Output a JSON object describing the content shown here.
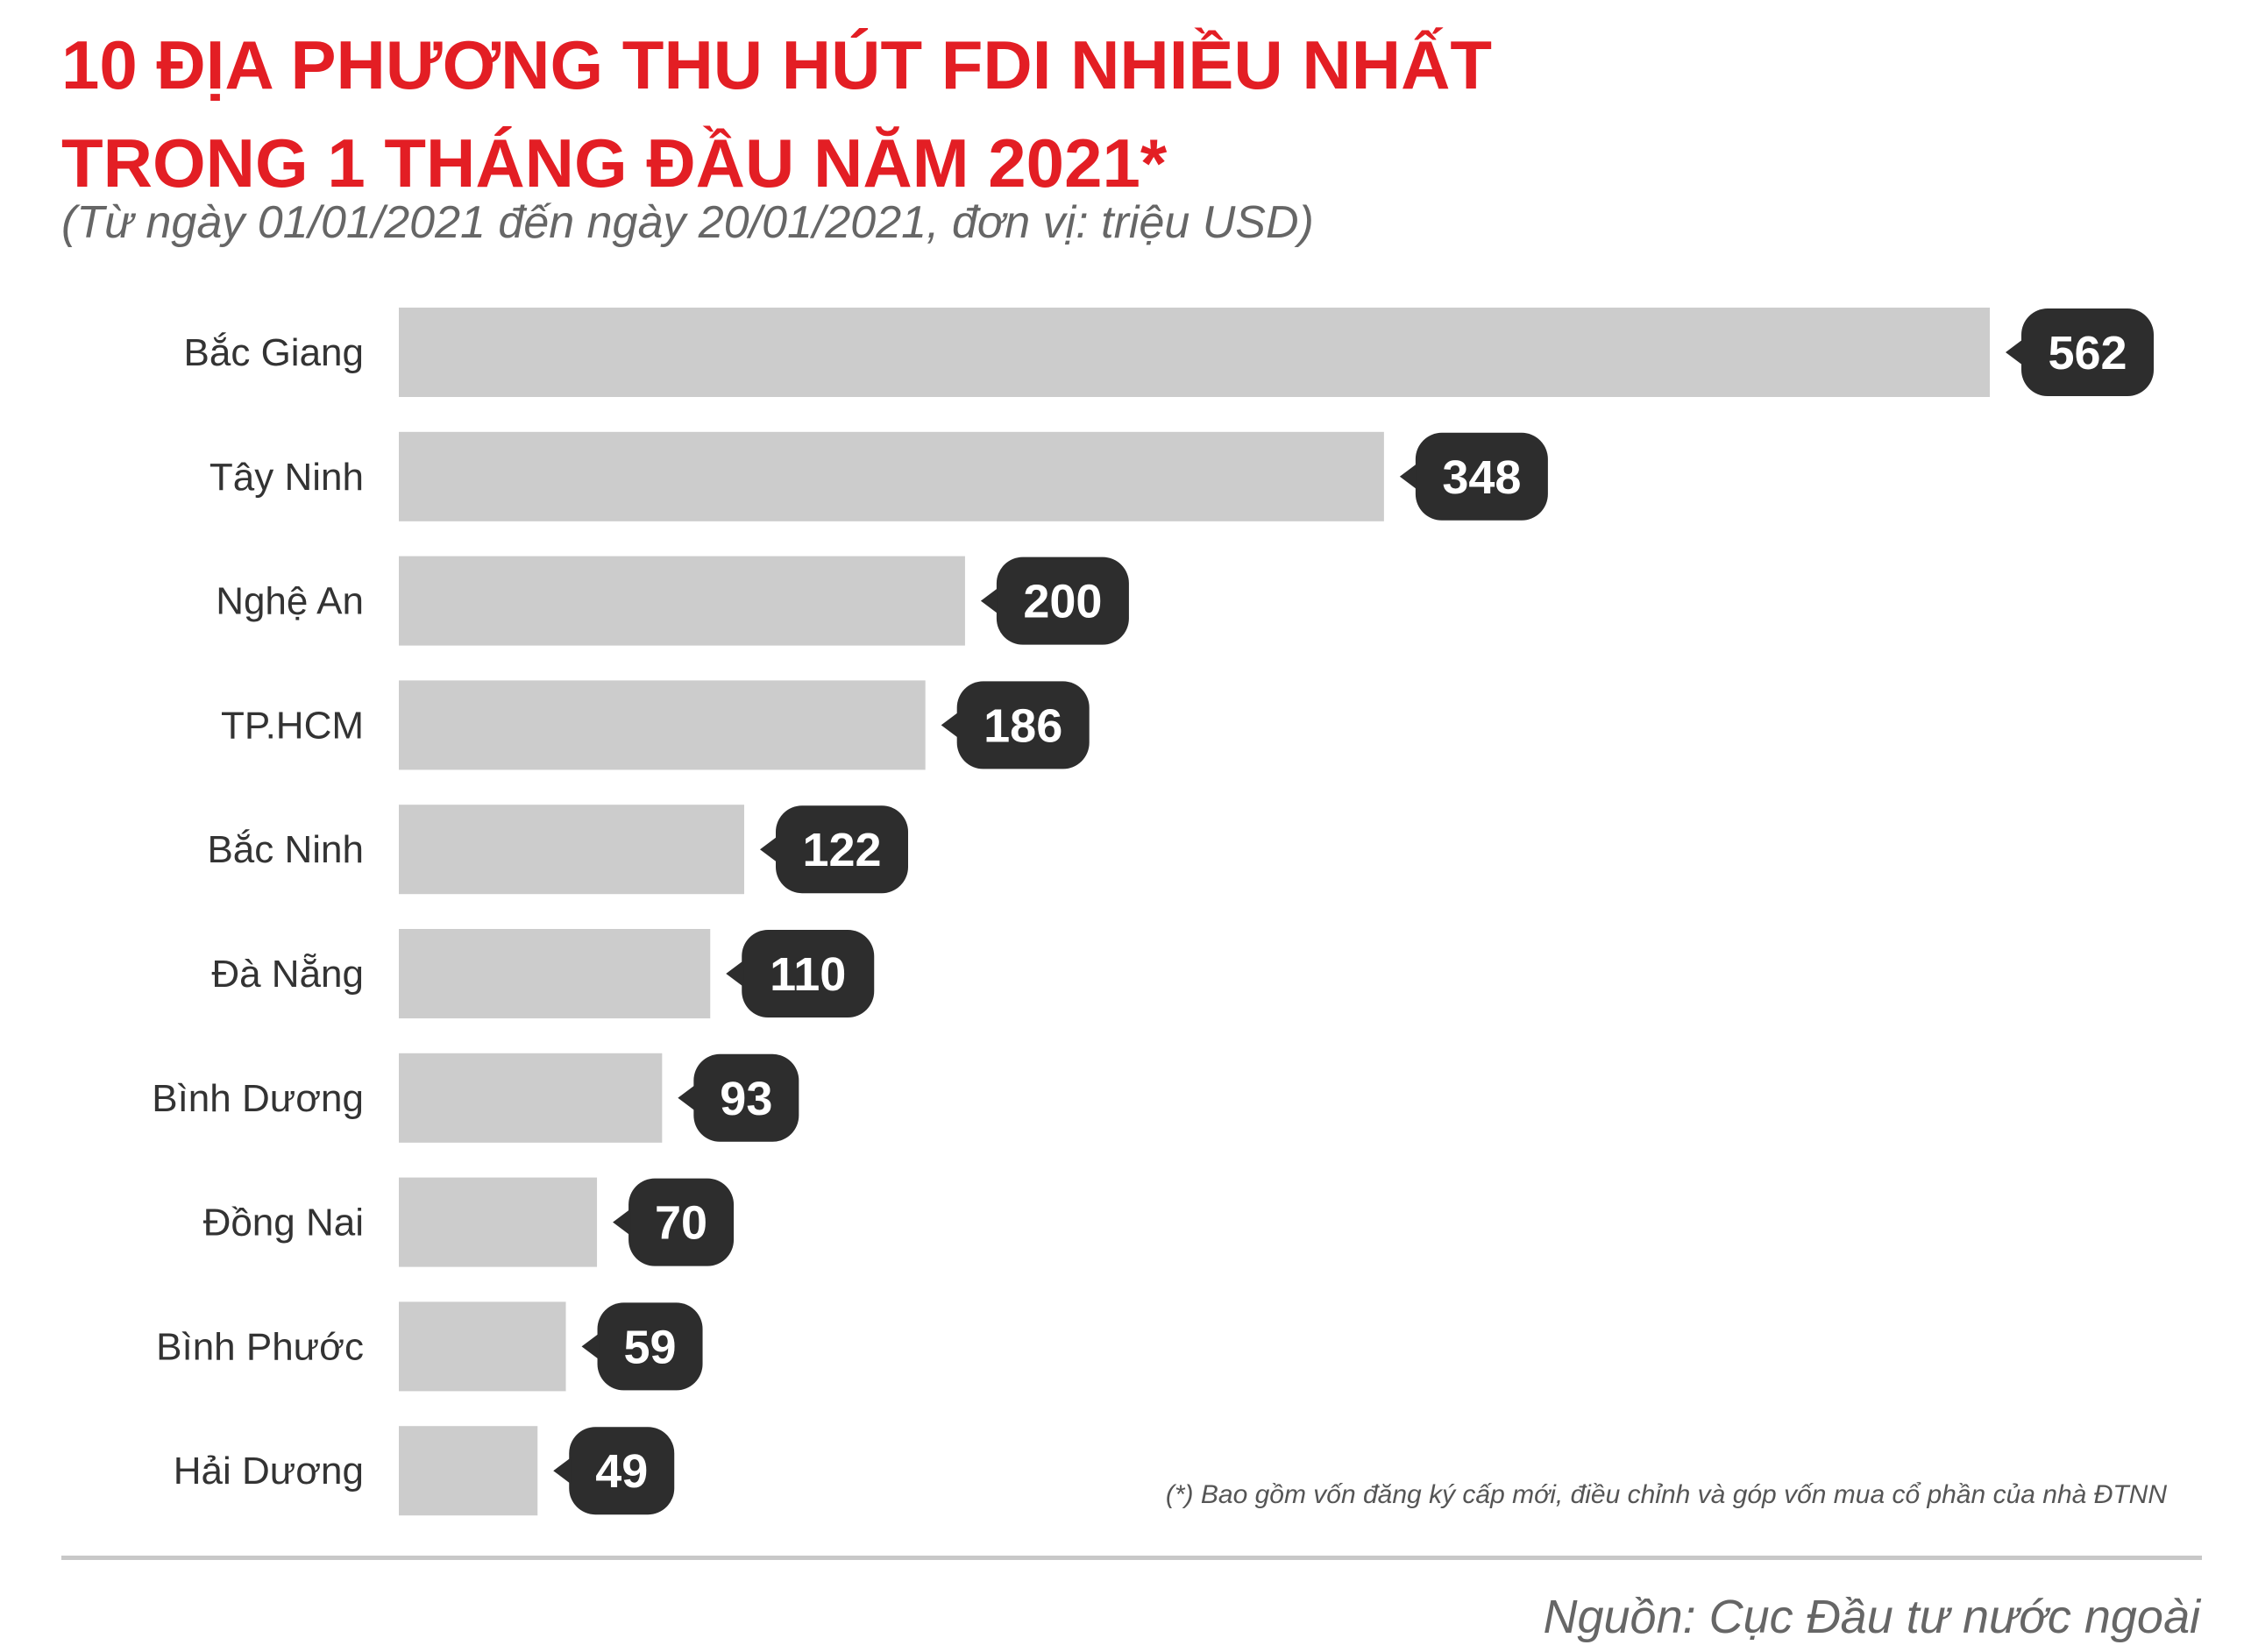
{
  "header": {
    "title_line1": "10 ĐỊA PHƯƠNG THU HÚT FDI NHIỀU NHẤT",
    "title_line2": "TRONG 1 THÁNG ĐẦU NĂM 2021*",
    "subtitle": "(Từ ngày 01/01/2021 đến ngày 20/01/2021, đơn vị: triệu USD)"
  },
  "footer": {
    "footnote": "(*) Bao gồm vốn đăng ký cấp mới, điều chỉnh và góp vốn mua cổ phần của nhà ĐTNN",
    "source": "Nguồn: Cục Đầu tư nước ngoài"
  },
  "colors": {
    "title": "#e31e24",
    "bar": "#cccccc",
    "value_bubble": "#2d2d2d",
    "value_text": "#ffffff"
  },
  "chart_data": {
    "type": "bar",
    "orientation": "horizontal",
    "categories": [
      "Bắc Giang",
      "Tây Ninh",
      "Nghệ An",
      "TP.HCM",
      "Bắc Ninh",
      "Đà Nẵng",
      "Bình Dương",
      "Đồng Nai",
      "Bình Phước",
      "Hải Dương"
    ],
    "values": [
      562,
      348,
      200,
      186,
      122,
      110,
      93,
      70,
      59,
      49
    ],
    "xlabel": "",
    "ylabel": "",
    "xlim": [
      0,
      562
    ],
    "grid": false,
    "legend": "none",
    "data_labels": true
  }
}
